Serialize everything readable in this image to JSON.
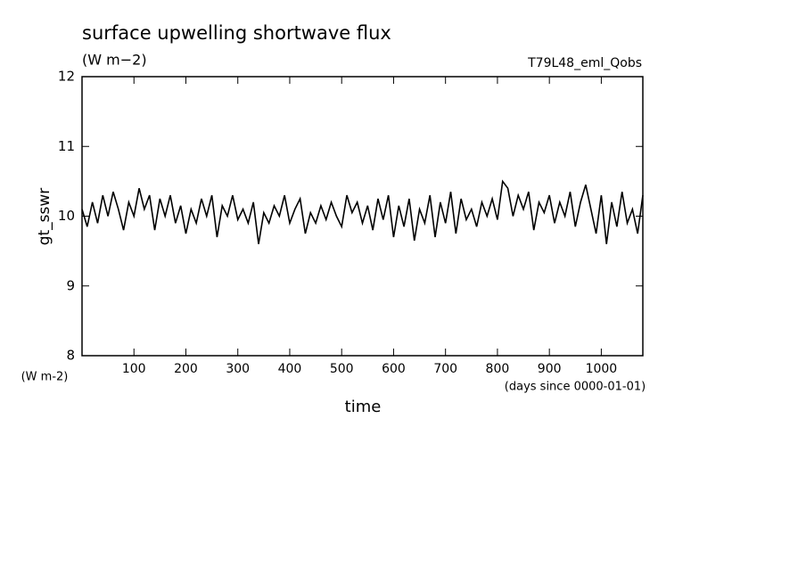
{
  "chart_data": {
    "type": "line",
    "title": "surface upwelling shortwave flux",
    "subtitle": "(W m−2)",
    "annotation": "T79L48_eml_Qobs",
    "y_label": "gt_sswr",
    "y_unit": "(W m-2)",
    "x_label": "time",
    "x_unit": "(days since 0000-01-01)",
    "xlim": [
      0,
      1080
    ],
    "ylim": [
      8,
      12
    ],
    "xticks": [
      100,
      200,
      300,
      400,
      500,
      600,
      700,
      800,
      900,
      1000
    ],
    "yticks": [
      8,
      9,
      10,
      11,
      12
    ],
    "x": [
      0,
      10,
      20,
      30,
      40,
      50,
      60,
      70,
      80,
      90,
      100,
      110,
      120,
      130,
      140,
      150,
      160,
      170,
      180,
      190,
      200,
      210,
      220,
      230,
      240,
      250,
      260,
      270,
      280,
      290,
      300,
      310,
      320,
      330,
      340,
      350,
      360,
      370,
      380,
      390,
      400,
      410,
      420,
      430,
      440,
      450,
      460,
      470,
      480,
      490,
      500,
      510,
      520,
      530,
      540,
      550,
      560,
      570,
      580,
      590,
      600,
      610,
      620,
      630,
      640,
      650,
      660,
      670,
      680,
      690,
      700,
      710,
      720,
      730,
      740,
      750,
      760,
      770,
      780,
      790,
      800,
      810,
      820,
      830,
      840,
      850,
      860,
      870,
      880,
      890,
      900,
      910,
      920,
      930,
      940,
      950,
      960,
      970,
      980,
      990,
      1000,
      1010,
      1020,
      1030,
      1040,
      1050,
      1060,
      1070,
      1080
    ],
    "series": [
      {
        "color": "#000000",
        "values": [
          10.1,
          9.85,
          10.2,
          9.9,
          10.3,
          10.0,
          10.35,
          10.1,
          9.8,
          10.2,
          10.0,
          10.4,
          10.1,
          10.3,
          9.8,
          10.25,
          10.0,
          10.3,
          9.9,
          10.15,
          9.75,
          10.1,
          9.9,
          10.25,
          10.0,
          10.3,
          9.7,
          10.15,
          10.0,
          10.3,
          9.95,
          10.1,
          9.9,
          10.2,
          9.6,
          10.05,
          9.9,
          10.15,
          10.0,
          10.3,
          9.9,
          10.1,
          10.25,
          9.75,
          10.05,
          9.9,
          10.15,
          9.95,
          10.2,
          10.0,
          9.85,
          10.3,
          10.05,
          10.2,
          9.9,
          10.15,
          9.8,
          10.25,
          9.95,
          10.3,
          9.7,
          10.15,
          9.85,
          10.25,
          9.65,
          10.1,
          9.9,
          10.3,
          9.7,
          10.2,
          9.9,
          10.35,
          9.75,
          10.25,
          9.95,
          10.1,
          9.85,
          10.2,
          10.0,
          10.25,
          9.95,
          10.5,
          10.4,
          10.0,
          10.3,
          10.1,
          10.35,
          9.8,
          10.2,
          10.05,
          10.3,
          9.9,
          10.2,
          10.0,
          10.35,
          9.85,
          10.2,
          10.45,
          10.1,
          9.75,
          10.3,
          9.6,
          10.2,
          9.85,
          10.35,
          9.9,
          10.1,
          9.75,
          10.3
        ]
      }
    ]
  }
}
